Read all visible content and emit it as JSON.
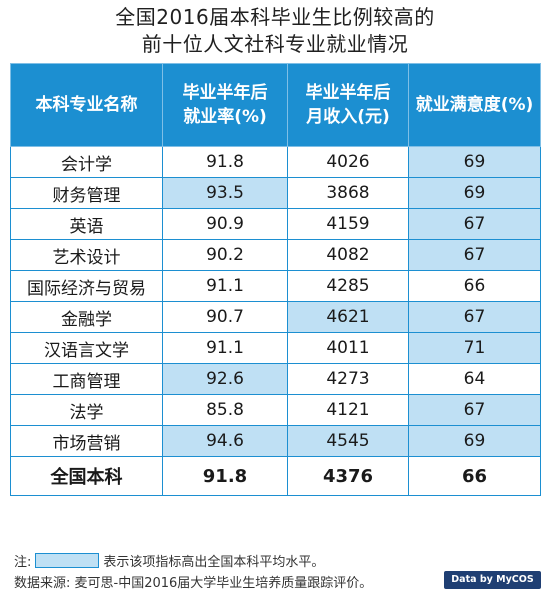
{
  "title_line1": "全国2016届本科毕业生比例较高的",
  "title_line2": "前十位人文社科专业就业情况",
  "headers": {
    "major": "本科专业名称",
    "employment_line1": "毕业半年后",
    "employment_line2": "就业率(%)",
    "income_line1": "毕业半年后",
    "income_line2": "月收入(元)",
    "satisfaction": "就业满意度(%)"
  },
  "rows": [
    {
      "major": "会计学",
      "employment": "91.8",
      "income": "4026",
      "satisfaction": "69"
    },
    {
      "major": "财务管理",
      "employment": "93.5",
      "income": "3868",
      "satisfaction": "69"
    },
    {
      "major": "英语",
      "employment": "90.9",
      "income": "4159",
      "satisfaction": "67"
    },
    {
      "major": "艺术设计",
      "employment": "90.2",
      "income": "4082",
      "satisfaction": "67"
    },
    {
      "major": "国际经济与贸易",
      "employment": "91.1",
      "income": "4285",
      "satisfaction": "66"
    },
    {
      "major": "金融学",
      "employment": "90.7",
      "income": "4621",
      "satisfaction": "67"
    },
    {
      "major": "汉语言文学",
      "employment": "91.1",
      "income": "4011",
      "satisfaction": "71"
    },
    {
      "major": "工商管理",
      "employment": "92.6",
      "income": "4273",
      "satisfaction": "64"
    },
    {
      "major": "法学",
      "employment": "85.8",
      "income": "4121",
      "satisfaction": "67"
    },
    {
      "major": "市场营销",
      "employment": "94.6",
      "income": "4545",
      "satisfaction": "69"
    }
  ],
  "total": {
    "major": "全国本科",
    "employment": "91.8",
    "income": "4376",
    "satisfaction": "66"
  },
  "note_prefix": "注:",
  "note_text": "表示该项指标高出全国本科平均水平。",
  "source_text": "数据来源: 麦可思-中国2016届大学毕业生培养质量跟踪评价。",
  "logo_text": "Data by MyCOS",
  "colors": {
    "header_bg": "#1c8fd1",
    "highlight": "#bfe0f4"
  }
}
